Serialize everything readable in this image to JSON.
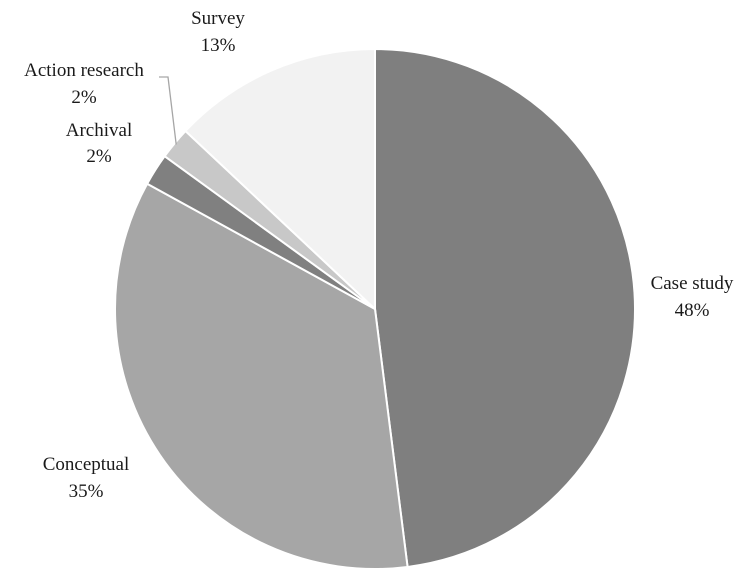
{
  "chart_data": {
    "type": "pie",
    "title": "",
    "slices": [
      {
        "label": "Case study",
        "value": 48,
        "value_label": "48%",
        "color": "#7f7f7f"
      },
      {
        "label": "Conceptual",
        "value": 35,
        "value_label": "35%",
        "color": "#a6a6a6"
      },
      {
        "label": "Archival",
        "value": 2,
        "value_label": "2%",
        "color": "#808080"
      },
      {
        "label": "Action research",
        "value": 2,
        "value_label": "2%",
        "color": "#c8c8c8"
      },
      {
        "label": "Survey",
        "value": 13,
        "value_label": "13%",
        "color": "#f2f2f2"
      }
    ],
    "start_angle": "12 o'clock",
    "direction": "clockwise",
    "legend": "none",
    "slice_border": "#ffffff",
    "leader_line_color": "#a6a6a6"
  }
}
